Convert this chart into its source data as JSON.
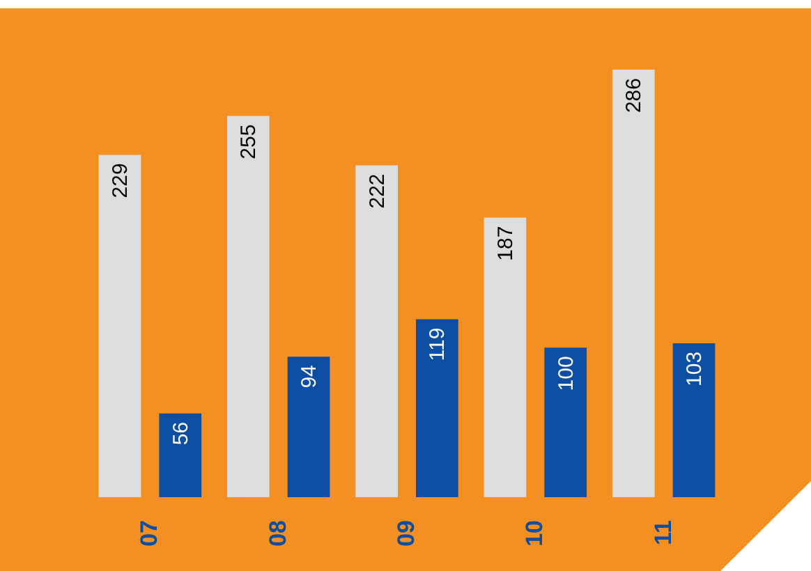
{
  "chart_data": {
    "type": "bar",
    "categories": [
      "07",
      "08",
      "09",
      "10",
      "11"
    ],
    "series": [
      {
        "color": "#dcdddf",
        "values": [
          229,
          255,
          222,
          187,
          286
        ]
      },
      {
        "color": "#0b4ea2",
        "values": [
          56,
          94,
          119,
          100,
          103
        ]
      }
    ],
    "data_labels": true,
    "legend": false
  }
}
